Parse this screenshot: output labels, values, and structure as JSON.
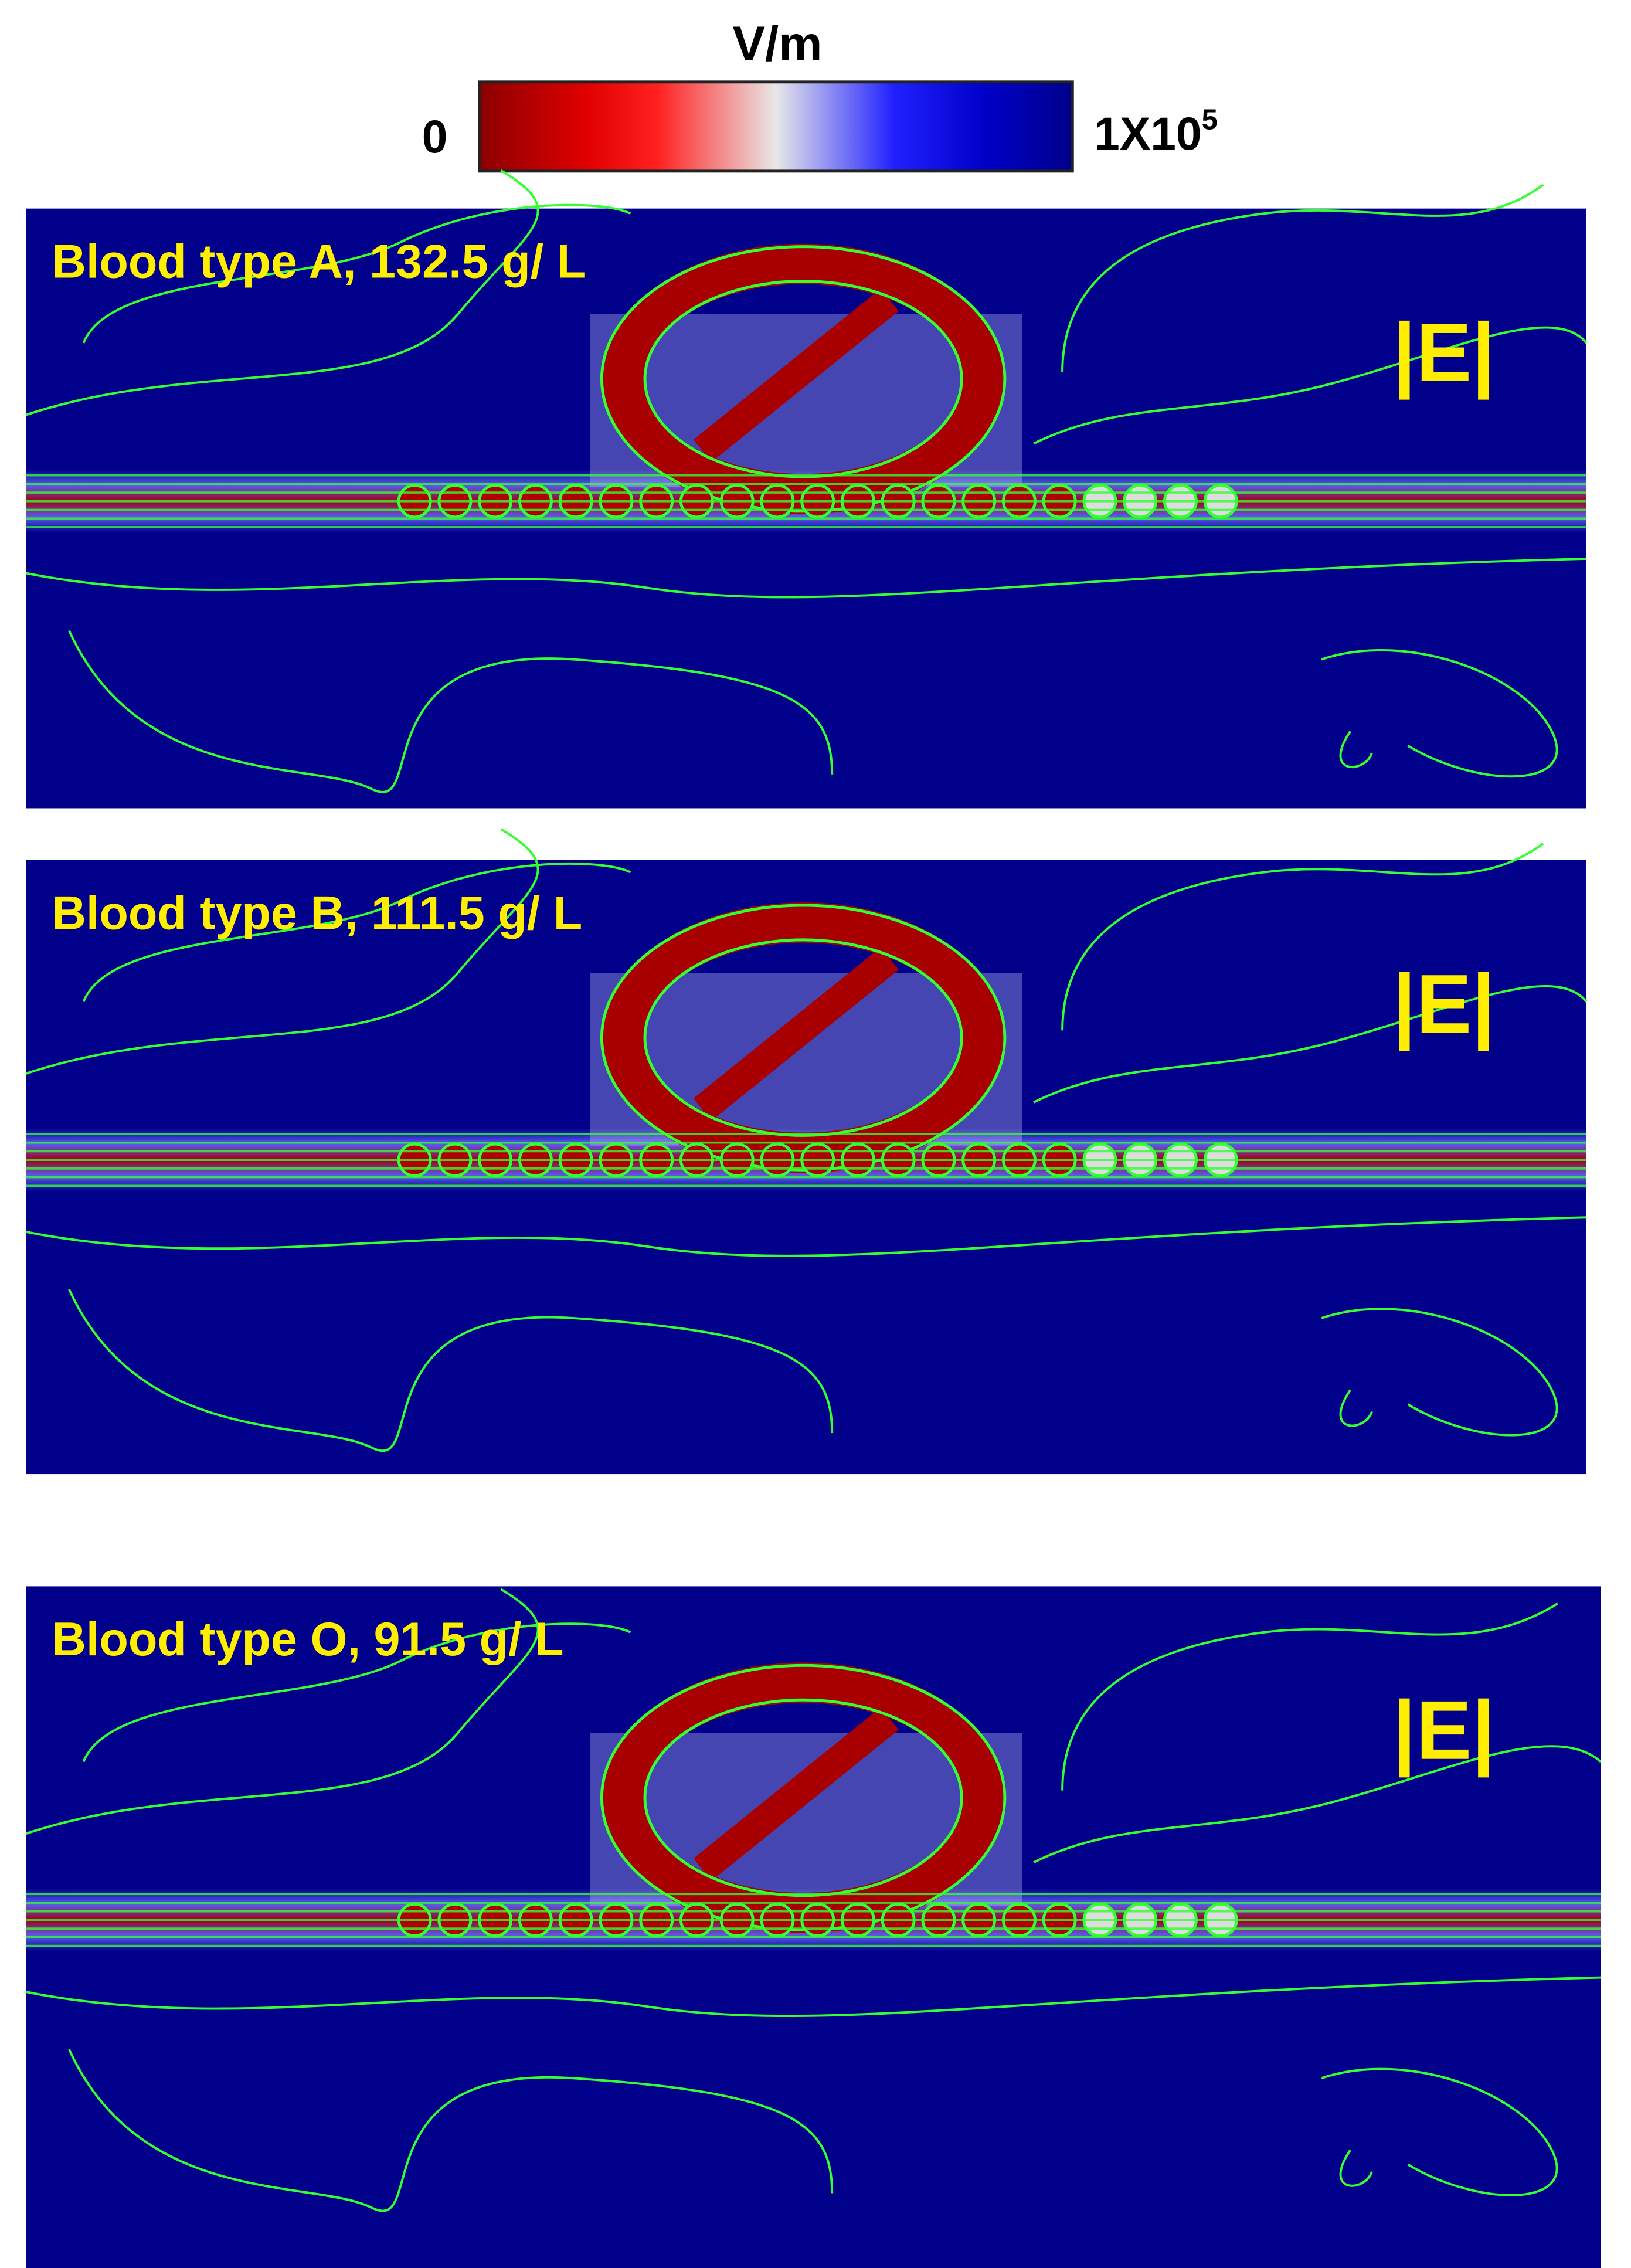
{
  "colorbar": {
    "unit": "V/m",
    "min_label": "0",
    "max_label": "1X10",
    "max_label_exponent": "5"
  },
  "panels": [
    {
      "title": "Blood type A, 132.5 g/ L",
      "label": "|E|"
    },
    {
      "title": "Blood type B, 111.5 g/ L",
      "label": "|E|"
    },
    {
      "title": "Blood type O, 91.5 g/ L",
      "label": "|E|"
    }
  ]
}
